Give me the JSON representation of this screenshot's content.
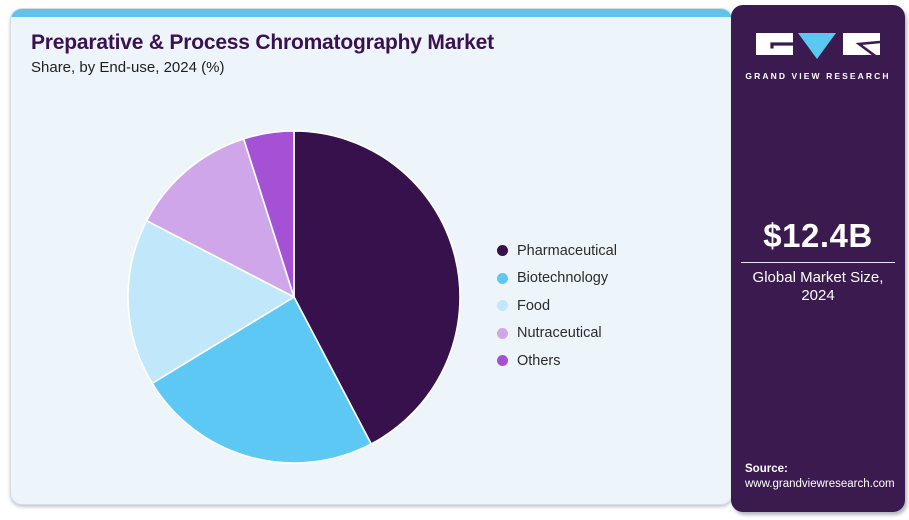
{
  "header": {
    "title": "Preparative & Process Chromatography Market",
    "subtitle": "Share, by End-use, 2024 (%)"
  },
  "chart_data": {
    "type": "pie",
    "title": "Preparative & Process Chromatography Market Share, by End-use, 2024 (%)",
    "unit": "%",
    "categories": [
      "Pharmaceutical",
      "Biotechnology",
      "Food",
      "Nutraceutical",
      "Others"
    ],
    "values": [
      42.3,
      24.0,
      16.3,
      12.5,
      4.9
    ],
    "colors": [
      "#36114b",
      "#5ec8f5",
      "#c0e8fa",
      "#cfa6e9",
      "#a551d6"
    ],
    "start_angle_deg": 0,
    "direction": "clockwise",
    "legend_position": "right",
    "labels_shown": false
  },
  "sidebar": {
    "logo_text": "GRAND VIEW RESEARCH",
    "market_size_value": "$12.4B",
    "market_size_caption": "Global Market Size, 2024",
    "source_label": "Source:",
    "source_url": "www.grandviewresearch.com"
  },
  "colors": {
    "card_background": "#eef5fa",
    "top_bar": "#5fc3ec",
    "title_text": "#3a1152",
    "sidebar_background": "#3b1a50",
    "logo_triangle": "#5bc8f0",
    "slice_separator": "#ffffff"
  }
}
